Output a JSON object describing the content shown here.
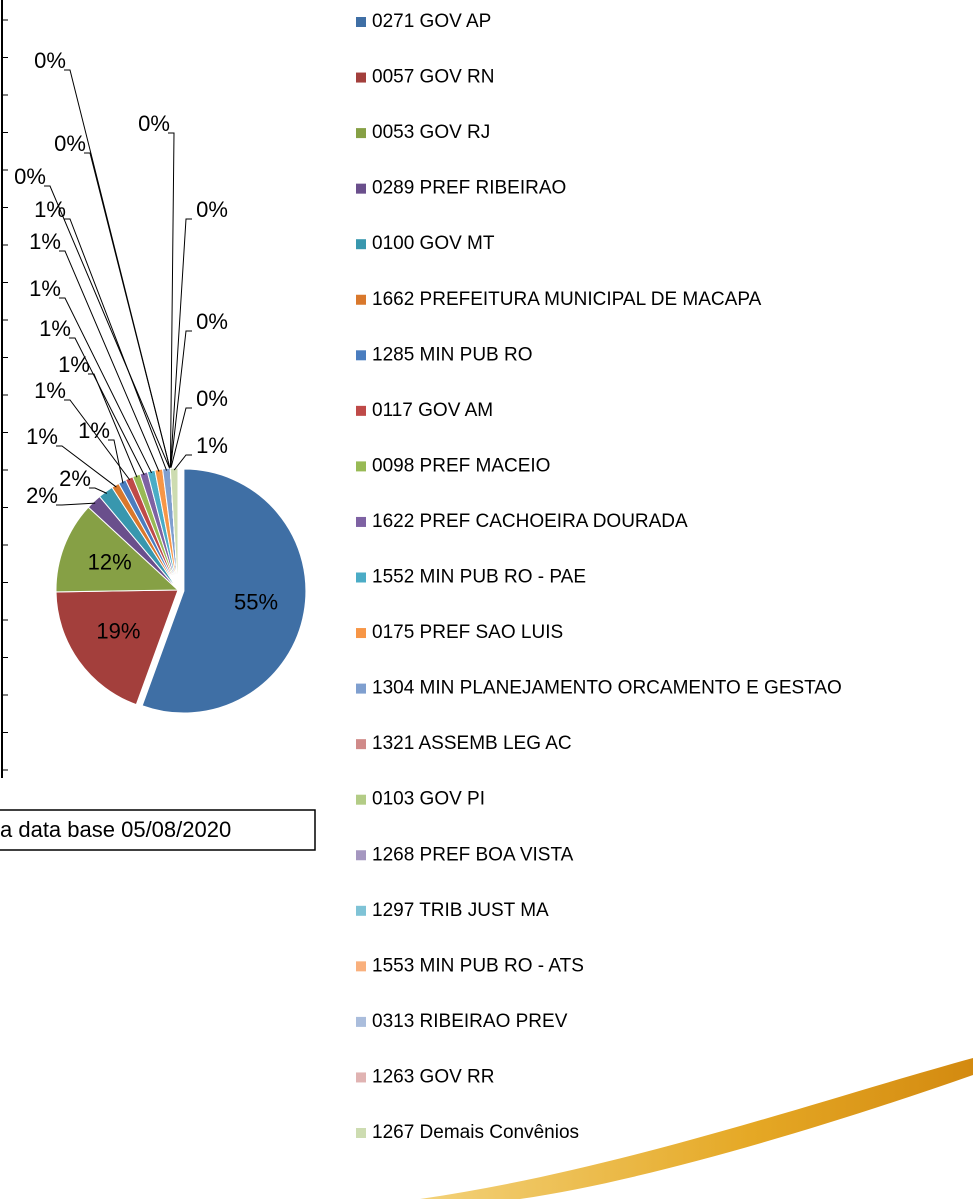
{
  "chart_data": {
    "type": "pie",
    "categories": [
      "0271 GOV AP",
      "0057 GOV RN",
      "0053 GOV RJ",
      "0289 PREF RIBEIRAO",
      "0100 GOV MT",
      "1662 PREFEITURA MUNICIPAL DE MACAPA",
      "1285 MIN PUB RO",
      "0117 GOV AM",
      "0098 PREF MACEIO",
      "1622 PREF CACHOEIRA DOURADA",
      "1552 MIN PUB RO - PAE",
      "0175 PREF SAO LUIS",
      "1304 MIN PLANEJAMENTO ORCAMENTO E GESTAO",
      "1321 ASSEMB LEG AC",
      "0103 GOV PI",
      "1268 PREF BOA VISTA",
      "1297 TRIB JUST MA",
      "1553 MIN PUB RO - ATS",
      "0313 RIBEIRAO PREV",
      "1263 GOV RR",
      "1267 Demais Convênios"
    ],
    "values": [
      55,
      19,
      12,
      2,
      2,
      1,
      1,
      1,
      1,
      1,
      1,
      1,
      1,
      0,
      0,
      0,
      0,
      0,
      0,
      0,
      1
    ],
    "value_labels": [
      "55%",
      "19%",
      "12%",
      "2%",
      "2%",
      "1%",
      "1%",
      "1%",
      "1%",
      "1%",
      "1%",
      "1%",
      "1%",
      "0%",
      "0%",
      "0%",
      "0%",
      "0%",
      "0%",
      "0%",
      "1%"
    ],
    "colors": [
      "#3f6fa5",
      "#a33f3c",
      "#86a045",
      "#6a4f8c",
      "#3897ae",
      "#d9782c",
      "#4a7dbf",
      "#bf4a48",
      "#98ba55",
      "#7e62a3",
      "#4bacc6",
      "#f79646",
      "#7f9fcf",
      "#d08a89",
      "#b3cc86",
      "#a597c0",
      "#7fc3d6",
      "#f9b07d",
      "#aabddc",
      "#e0b3b2",
      "#cddcb1"
    ],
    "legend": "right"
  },
  "note": "a data base 05/08/2020"
}
